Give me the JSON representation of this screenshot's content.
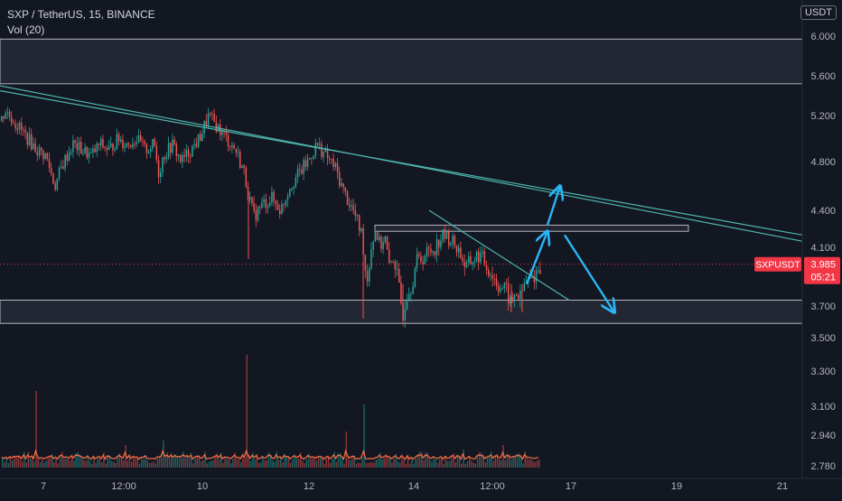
{
  "chart_data": {
    "type": "candlestick",
    "title": "SXP / TetherUS, 15, BINANCE",
    "symbol": "SXPUSDT",
    "volume_indicator": "Vol (20)",
    "currency": "USDT",
    "last_price": "3.985",
    "countdown": "05:21",
    "y_ticks": [
      "6.000",
      "5.600",
      "5.200",
      "4.800",
      "4.400",
      "4.100",
      "3.700",
      "3.500",
      "3.300",
      "3.100",
      "2.940",
      "2.780"
    ],
    "x_ticks": [
      "7",
      "12:00",
      "10",
      "12",
      "14",
      "12:00",
      "17",
      "19",
      "21"
    ],
    "price_path": [
      [
        0,
        5.15
      ],
      [
        5,
        5.25
      ],
      [
        10,
        5.2
      ],
      [
        20,
        5.1
      ],
      [
        30,
        5.0
      ],
      [
        40,
        4.9
      ],
      [
        50,
        4.85
      ],
      [
        60,
        4.6
      ],
      [
        70,
        4.8
      ],
      [
        80,
        4.95
      ],
      [
        90,
        4.9
      ],
      [
        100,
        4.85
      ],
      [
        110,
        4.95
      ],
      [
        120,
        4.9
      ],
      [
        130,
        5.0
      ],
      [
        140,
        4.95
      ],
      [
        150,
        5.0
      ],
      [
        160,
        4.9
      ],
      [
        170,
        4.95
      ],
      [
        175,
        4.7
      ],
      [
        180,
        4.85
      ],
      [
        190,
        4.95
      ],
      [
        200,
        4.8
      ],
      [
        210,
        4.9
      ],
      [
        220,
        5.0
      ],
      [
        230,
        5.2
      ],
      [
        240,
        5.1
      ],
      [
        250,
        5.0
      ],
      [
        260,
        4.9
      ],
      [
        270,
        4.7
      ],
      [
        275,
        4.5
      ],
      [
        280,
        4.35
      ],
      [
        290,
        4.45
      ],
      [
        300,
        4.5
      ],
      [
        310,
        4.4
      ],
      [
        320,
        4.6
      ],
      [
        330,
        4.7
      ],
      [
        340,
        4.8
      ],
      [
        350,
        4.95
      ],
      [
        360,
        4.85
      ],
      [
        370,
        4.75
      ],
      [
        380,
        4.55
      ],
      [
        390,
        4.4
      ],
      [
        395,
        4.3
      ],
      [
        400,
        4.2
      ],
      [
        405,
        3.85
      ],
      [
        410,
        4.1
      ],
      [
        415,
        4.25
      ],
      [
        420,
        4.1
      ],
      [
        425,
        4.2
      ],
      [
        430,
        3.95
      ],
      [
        435,
        4.05
      ],
      [
        440,
        3.85
      ],
      [
        445,
        3.65
      ],
      [
        450,
        3.8
      ],
      [
        455,
        3.85
      ],
      [
        460,
        4.0
      ],
      [
        470,
        4.05
      ],
      [
        480,
        4.1
      ],
      [
        490,
        4.2
      ],
      [
        500,
        4.15
      ],
      [
        505,
        4.1
      ],
      [
        510,
        4.05
      ],
      [
        515,
        3.95
      ],
      [
        520,
        4.0
      ],
      [
        530,
        4.05
      ],
      [
        540,
        3.95
      ],
      [
        550,
        3.85
      ],
      [
        560,
        3.8
      ],
      [
        565,
        3.7
      ],
      [
        570,
        3.8
      ],
      [
        575,
        3.75
      ],
      [
        580,
        3.85
      ],
      [
        590,
        3.9
      ],
      [
        598,
        3.985
      ]
    ],
    "trendlines": [
      {
        "from": [
          0,
          5.45
        ],
        "to": [
          888,
          4.2
        ]
      },
      {
        "from": [
          0,
          5.5
        ],
        "to": [
          888,
          4.15
        ]
      },
      {
        "from": [
          475,
          4.4
        ],
        "to": [
          630,
          3.74
        ]
      }
    ],
    "zones": [
      {
        "top": 5.97,
        "bottom": 5.52
      },
      {
        "top": 3.74,
        "bottom": 3.59
      },
      {
        "top": 4.28,
        "bottom": 4.23,
        "x_start": 415,
        "x_end": 762
      }
    ],
    "projection_arrows": [
      {
        "from": [
          583,
          3.85
        ],
        "to": [
          606,
          4.23
        ]
      },
      {
        "from": [
          606,
          4.28
        ],
        "to": [
          620,
          4.6
        ]
      },
      {
        "from": [
          625,
          4.2
        ],
        "to": [
          680,
          3.66
        ]
      }
    ],
    "volume_bars": "noisy low volume with spikes at x≈39, 272, 402",
    "grid": false,
    "colors": {
      "background": "#131722",
      "up": "#26a69a",
      "down": "#ef5350",
      "trendline": "#4db6ac",
      "arrow": "#29b6f6",
      "zone": "#2a2e39",
      "volume_ma": "#ff7043",
      "price_label": "#f23645"
    }
  }
}
